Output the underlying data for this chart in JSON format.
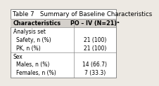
{
  "title": "Table 7   Summary of Baseline Characteristics",
  "col_headers": [
    "Characteristics",
    "PO – IV (N=21)ᵃ"
  ],
  "rows": [
    [
      "Analysis set",
      ""
    ],
    [
      "Safety, n (%)",
      "21 (100)"
    ],
    [
      "PK, n (%)",
      "21 (100)"
    ],
    [
      "Sex",
      ""
    ],
    [
      "Males, n (%)",
      "14 (66.7)"
    ],
    [
      "Females, n (%)",
      "7 (33.3)"
    ]
  ],
  "col_split": 0.6,
  "header_bg": "#d4d0cb",
  "border_color": "#888888",
  "title_fontsize": 6.2,
  "header_fontsize": 5.8,
  "cell_fontsize": 5.5,
  "fig_bg": "#ede9e3",
  "table_bg": "#ffffff",
  "section_rows": [
    0,
    3
  ],
  "separator_after": [
    2
  ]
}
